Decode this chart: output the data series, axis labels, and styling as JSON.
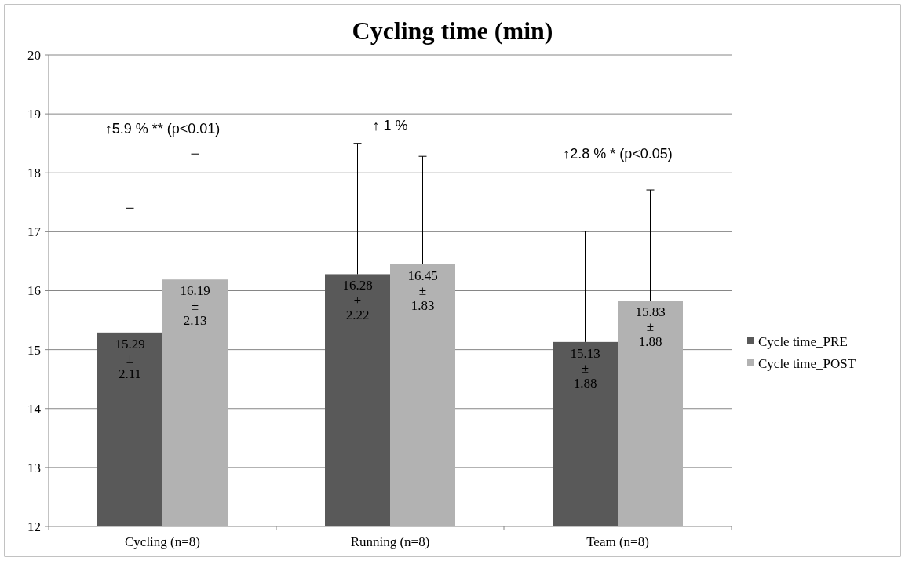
{
  "chart_data": {
    "type": "bar",
    "title": "Cycling time (min)",
    "categories": [
      "Cycling (n=8)",
      "Running (n=8)",
      "Team (n=8)"
    ],
    "series": [
      {
        "name": "Cycle time_PRE",
        "color": "#595959",
        "values": [
          15.29,
          16.28,
          15.13
        ],
        "errors": [
          [
            15.29,
            17.4
          ],
          [
            16.28,
            18.5
          ],
          [
            15.13,
            17.01
          ]
        ],
        "value_labels": [
          "15.29\n±\n2.11",
          "16.28\n±\n2.22",
          "15.13\n±\n1.88"
        ]
      },
      {
        "name": "Cycle time_POST",
        "color": "#b2b2b2",
        "values": [
          16.19,
          16.45,
          15.83
        ],
        "errors": [
          [
            16.19,
            18.32
          ],
          [
            16.45,
            18.28
          ],
          [
            15.83,
            17.71
          ]
        ],
        "value_labels": [
          "16.19\n±\n2.13",
          "16.45\n±\n1.83",
          "15.83\n±\n1.88"
        ]
      }
    ],
    "ylim": [
      12,
      20
    ],
    "yticks": [
      12,
      13,
      14,
      15,
      16,
      17,
      18,
      19,
      20
    ],
    "grid": "y",
    "legend": "right",
    "annotations": [
      "↑5.9 % ** (p<0.01)",
      "↑ 1 %",
      "↑2.8 % * (p<0.05)"
    ]
  }
}
